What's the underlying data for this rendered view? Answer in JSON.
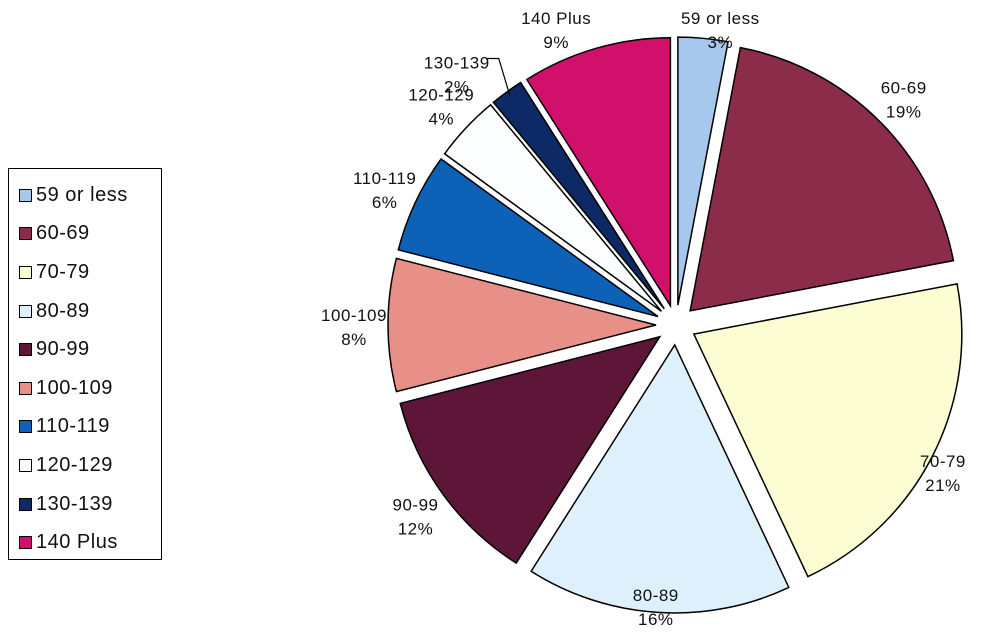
{
  "chart_data": {
    "type": "pie",
    "title": "",
    "exploded": true,
    "legend_position": "left",
    "slices": [
      {
        "label": "59 or less",
        "value": 3,
        "value_label": "3%",
        "color": "#a6c8ec"
      },
      {
        "label": "60-69",
        "value": 19,
        "value_label": "19%",
        "color": "#8a2c4a"
      },
      {
        "label": "70-79",
        "value": 21,
        "value_label": "21%",
        "color": "#fdfdd4"
      },
      {
        "label": "80-89",
        "value": 16,
        "value_label": "16%",
        "color": "#def0fb"
      },
      {
        "label": "90-99",
        "value": 12,
        "value_label": "12%",
        "color": "#5e1638"
      },
      {
        "label": "100-109",
        "value": 8,
        "value_label": "8%",
        "color": "#e88f88"
      },
      {
        "label": "110-119",
        "value": 6,
        "value_label": "6%",
        "color": "#0d62b8"
      },
      {
        "label": "120-129",
        "value": 4,
        "value_label": "4%",
        "color": "#fbfdff"
      },
      {
        "label": "130-139",
        "value": 2,
        "value_label": "2%",
        "color": "#0d2a66"
      },
      {
        "label": "140 Plus",
        "value": 9,
        "value_label": "9%",
        "color": "#d0106a"
      }
    ]
  }
}
